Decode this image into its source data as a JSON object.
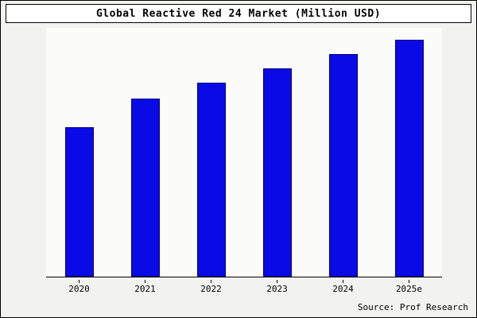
{
  "title_box": {
    "title": "Global Reactive Red 24 Market (Million USD)"
  },
  "source": "Source: Prof Research",
  "colors": {
    "bar_fill": "#0a0ae6",
    "bar_edge": "#000080",
    "background": "#f2f2f0",
    "plot_background": "#fbfbf9",
    "axis": "#000000"
  },
  "chart_data": {
    "type": "bar",
    "title": "Global Reactive Red 24 Market (Million USD)",
    "categories": [
      "2020",
      "2021",
      "2022",
      "2023",
      "2024",
      "2025e"
    ],
    "values": [
      63,
      75,
      82,
      88,
      94,
      100
    ],
    "xlabel": "",
    "ylabel": "",
    "ylim": [
      0,
      105
    ],
    "grid": false,
    "legend": false,
    "annotation": "Source: Prof Research"
  }
}
